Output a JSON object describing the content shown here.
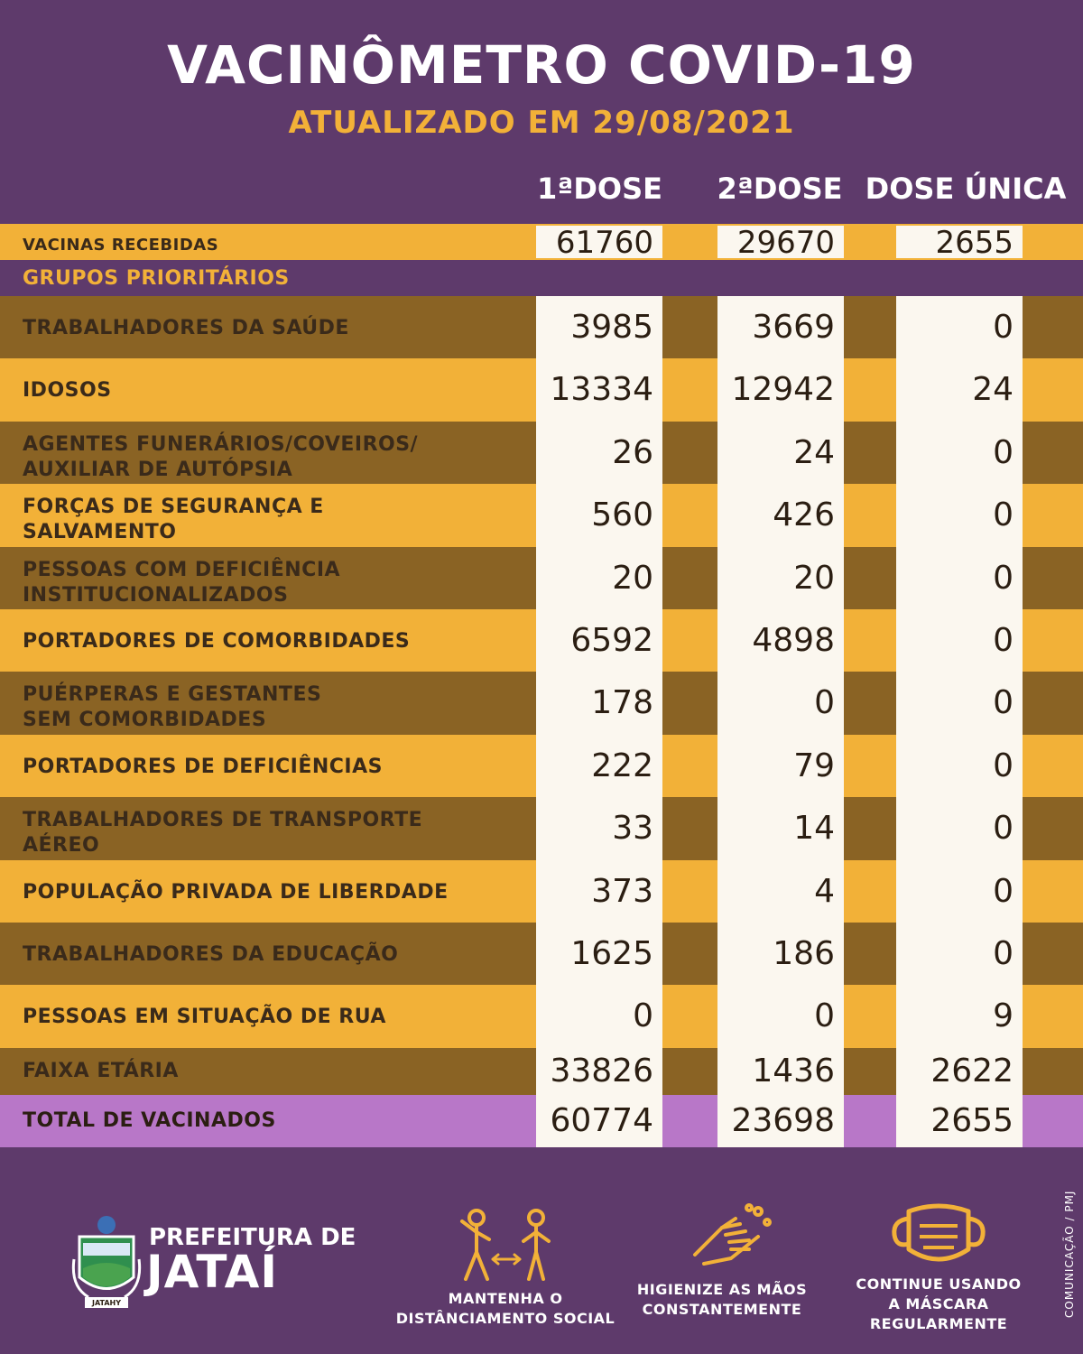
{
  "header": {
    "title": "VACINÔMETRO COVID-19",
    "subtitle": "ATUALIZADO EM 29/08/2021"
  },
  "columns": [
    "1ªDOSE",
    "2ªDOSE",
    "DOSE ÚNICA"
  ],
  "received": {
    "label": "VACINAS RECEBIDAS",
    "values": [
      "61760",
      "29670",
      "2655"
    ]
  },
  "section_label": "GRUPOS PRIORITÁRIOS",
  "rows": [
    {
      "label1": "TRABALHADORES DA SAÚDE",
      "label2": "",
      "v1": "3985",
      "v2": "3669",
      "v3": "0"
    },
    {
      "label1": "IDOSOS",
      "label2": "",
      "v1": "13334",
      "v2": "12942",
      "v3": "24"
    },
    {
      "label1": "AGENTES FUNERÁRIOS/COVEIROS/",
      "label2": "AUXILIAR DE AUTÓPSIA",
      "v1": "26",
      "v2": "24",
      "v3": "0"
    },
    {
      "label1": "FORÇAS DE SEGURANÇA E",
      "label2": "SALVAMENTO",
      "v1": "560",
      "v2": "426",
      "v3": "0"
    },
    {
      "label1": "PESSOAS COM DEFICIÊNCIA",
      "label2": "INSTITUCIONALIZADOS",
      "v1": "20",
      "v2": "20",
      "v3": "0"
    },
    {
      "label1": "PORTADORES DE COMORBIDADES",
      "label2": "",
      "v1": "6592",
      "v2": "4898",
      "v3": "0"
    },
    {
      "label1": "PUÉRPERAS E GESTANTES",
      "label2": "SEM COMORBIDADES",
      "v1": "178",
      "v2": "0",
      "v3": "0"
    },
    {
      "label1": "PORTADORES DE DEFICIÊNCIAS",
      "label2": "",
      "v1": "222",
      "v2": "79",
      "v3": "0"
    },
    {
      "label1": "TRABALHADORES DE TRANSPORTE",
      "label2": "AÉREO",
      "v1": "33",
      "v2": "14",
      "v3": "0"
    },
    {
      "label1": "POPULAÇÃO PRIVADA DE LIBERDADE",
      "label2": "",
      "v1": "373",
      "v2": "4",
      "v3": "0"
    },
    {
      "label1": "TRABALHADORES DA EDUCAÇÃO",
      "label2": "",
      "v1": "1625",
      "v2": "186",
      "v3": "0"
    },
    {
      "label1": "PESSOAS EM SITUAÇÃO DE RUA",
      "label2": "",
      "v1": "0",
      "v2": "0",
      "v3": "9"
    }
  ],
  "age_row": {
    "label": "FAIXA ETÁRIA",
    "values": [
      "33826",
      "1436",
      "2622"
    ]
  },
  "total_row": {
    "label": "TOTAL DE VACINADOS",
    "values": [
      "60774",
      "23698",
      "2655"
    ]
  },
  "credit": "COMUNICAÇÃO / PMJ",
  "footer": {
    "logo_top": "PREFEITURA DE",
    "logo_big": "JATAÍ",
    "crest_text": "JATAHY",
    "tips": [
      {
        "line1": "MANTENHA O",
        "line2": "DISTÂNCIAMENTO SOCIAL",
        "line3": ""
      },
      {
        "line1": "HIGIENIZE AS MÃOS",
        "line2": "CONSTANTEMENTE",
        "line3": ""
      },
      {
        "line1": "CONTINUE USANDO",
        "line2": "A MÁSCARA",
        "line3": "REGULARMENTE"
      }
    ]
  },
  "colors": {
    "purple": "#5e3a6b",
    "gold": "#f2b138",
    "brown": "#8a6324",
    "lilac": "#b877c8"
  }
}
